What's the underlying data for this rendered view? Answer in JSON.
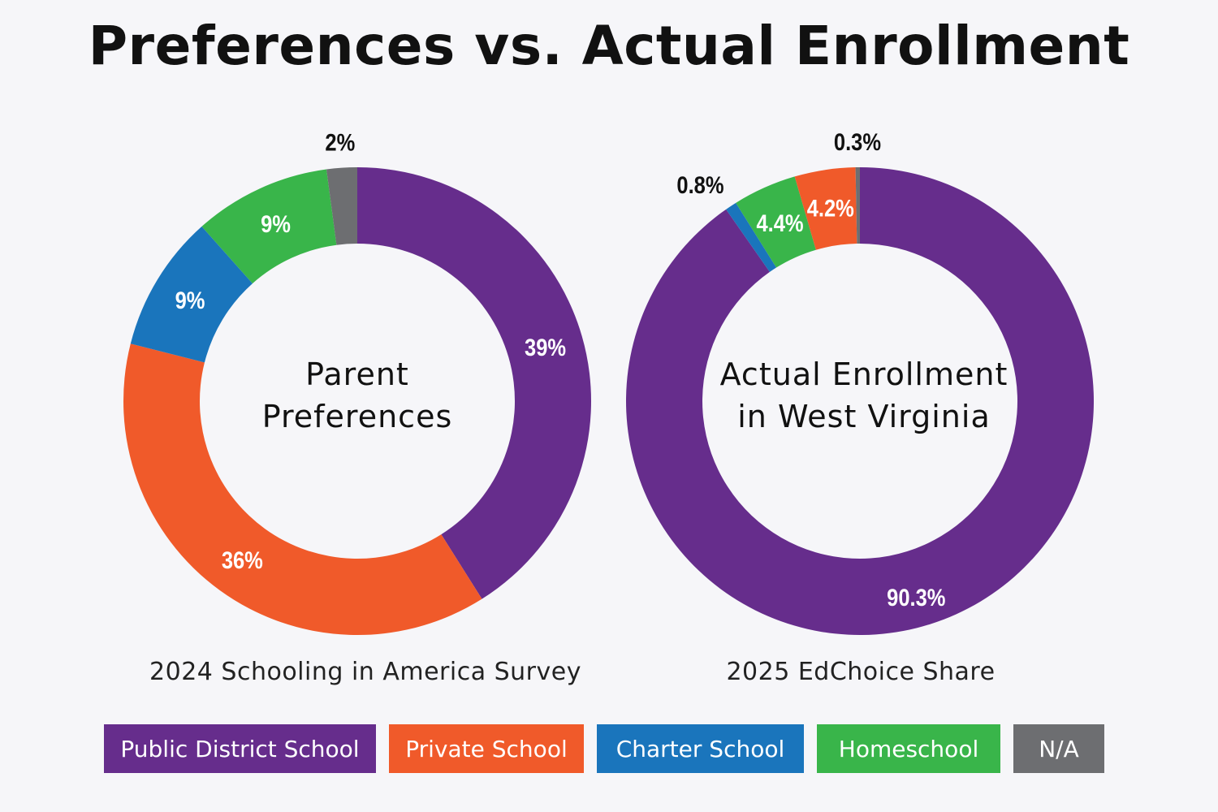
{
  "title": "Preferences vs. Actual Enrollment",
  "colors": {
    "public": "#662d8c",
    "private": "#f05a2a",
    "charter": "#1a75bc",
    "homeschool": "#39b54a",
    "na": "#6d6e71"
  },
  "legend": [
    {
      "label": "Public District School",
      "key": "public"
    },
    {
      "label": "Private School",
      "key": "private"
    },
    {
      "label": "Charter School",
      "key": "charter"
    },
    {
      "label": "Homeschool",
      "key": "homeschool"
    },
    {
      "label": "N/A",
      "key": "na"
    }
  ],
  "chart_data": [
    {
      "type": "pie",
      "variant": "donut",
      "center_label": [
        "Parent",
        "Preferences"
      ],
      "source": "2024 Schooling in America Survey",
      "slices": [
        {
          "category": "Public District School",
          "key": "public",
          "value": 39,
          "label": "39%"
        },
        {
          "category": "Private School",
          "key": "private",
          "value": 36,
          "label": "36%"
        },
        {
          "category": "Charter School",
          "key": "charter",
          "value": 9,
          "label": "9%"
        },
        {
          "category": "Homeschool",
          "key": "homeschool",
          "value": 9,
          "label": "9%"
        },
        {
          "category": "N/A",
          "key": "na",
          "value": 2,
          "label": "2%"
        }
      ]
    },
    {
      "type": "pie",
      "variant": "donut",
      "center_label": [
        "Actual Enrollment",
        "in West Virginia"
      ],
      "source": "2025 EdChoice Share",
      "slices": [
        {
          "category": "Public District School",
          "key": "public",
          "value": 90.3,
          "label": "90.3%"
        },
        {
          "category": "Charter School",
          "key": "charter",
          "value": 0.8,
          "label": "0.8%"
        },
        {
          "category": "Homeschool",
          "key": "homeschool",
          "value": 4.4,
          "label": "4.4%"
        },
        {
          "category": "Private School",
          "key": "private",
          "value": 4.2,
          "label": "4.2%"
        },
        {
          "category": "N/A",
          "key": "na",
          "value": 0.3,
          "label": "0.3%"
        }
      ]
    }
  ]
}
